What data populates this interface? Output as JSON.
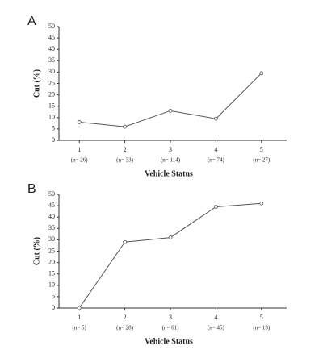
{
  "chart_data": [
    {
      "type": "line",
      "panel": "A",
      "x_label": "Vehicle Status",
      "y_label": "Cut (%)",
      "categories": [
        "1",
        "2",
        "3",
        "4",
        "5"
      ],
      "sample_sizes": [
        "(n= 26)",
        "(n= 33)",
        "(n= 114)",
        "(n= 74)",
        "(n= 27)"
      ],
      "values": [
        8,
        6,
        13,
        9.5,
        29.5
      ],
      "color": "#555555",
      "ylim": [
        0,
        50
      ],
      "yticks": [
        0,
        5,
        10,
        15,
        20,
        25,
        30,
        35,
        40,
        45,
        50
      ],
      "grid": false
    },
    {
      "type": "line",
      "panel": "B",
      "x_label": "Vehicle Status",
      "y_label": "Cut (%)",
      "categories": [
        "1",
        "2",
        "3",
        "4",
        "5"
      ],
      "sample_sizes": [
        "(n= 5)",
        "(n= 28)",
        "(n= 61)",
        "(n= 45)",
        "(n= 13)"
      ],
      "values": [
        0,
        29,
        31,
        44.5,
        46
      ],
      "color": "#555555",
      "ylim": [
        0,
        50
      ],
      "yticks": [
        0,
        5,
        10,
        15,
        20,
        25,
        30,
        35,
        40,
        45,
        50
      ],
      "grid": false
    }
  ]
}
